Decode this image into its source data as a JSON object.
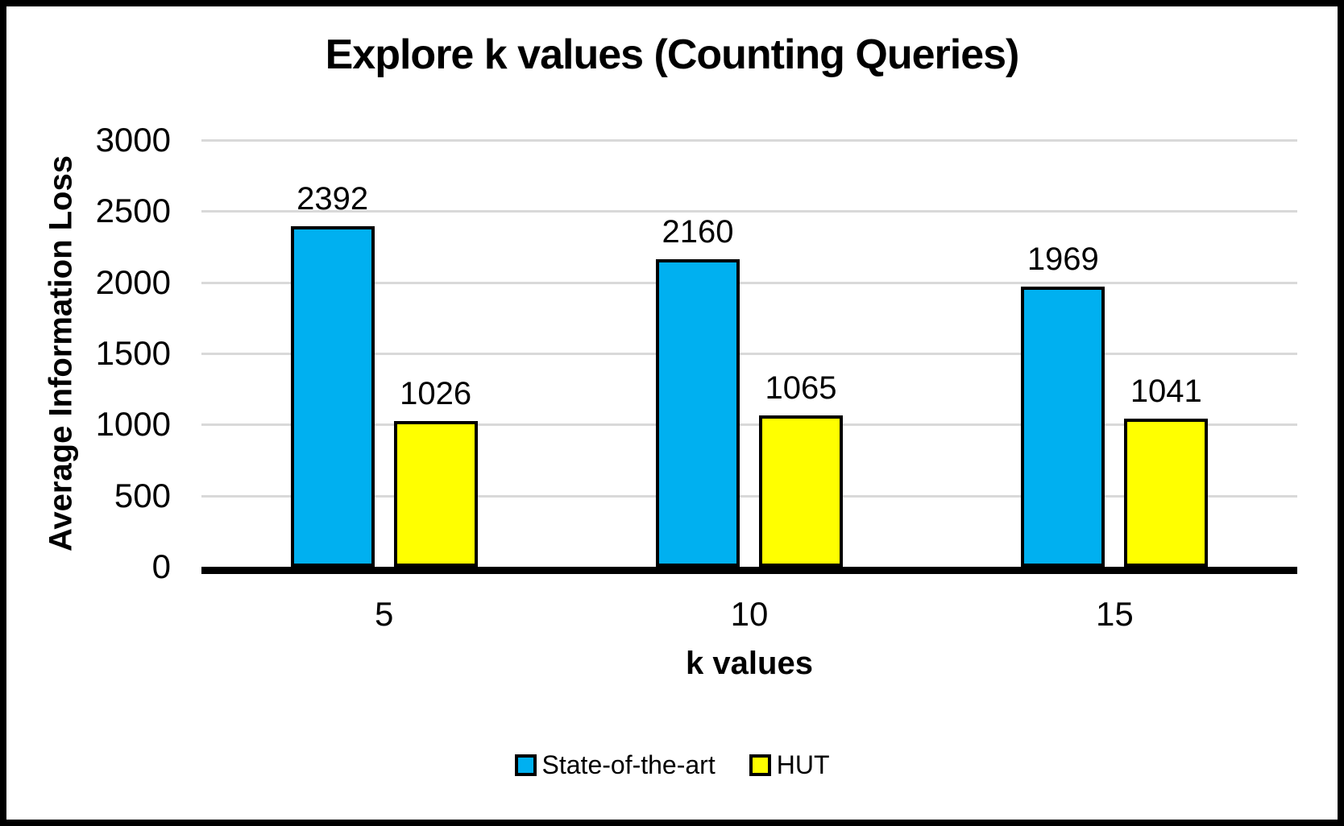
{
  "chart_data": {
    "type": "bar",
    "title": "Explore k values (Counting Queries)",
    "xlabel": "k values",
    "ylabel": "Average Information Loss",
    "categories": [
      "5",
      "10",
      "15"
    ],
    "series": [
      {
        "name": "State-of-the-art",
        "color": "#00B0F0",
        "values": [
          2392,
          2160,
          1969
        ]
      },
      {
        "name": "HUT",
        "color": "#FFFF00",
        "values": [
          1026,
          1065,
          1041
        ]
      }
    ],
    "ylim": [
      0,
      3000
    ],
    "yticks": [
      0,
      500,
      1000,
      1500,
      2000,
      2500,
      3000
    ],
    "grid": "horizontal",
    "gridline_color": "#D9D9D9",
    "bar_border_color": "#000000",
    "axis_line_color": "#000000",
    "frame_border_color": "#000000",
    "data_labels": true,
    "legend_position": "bottom"
  }
}
